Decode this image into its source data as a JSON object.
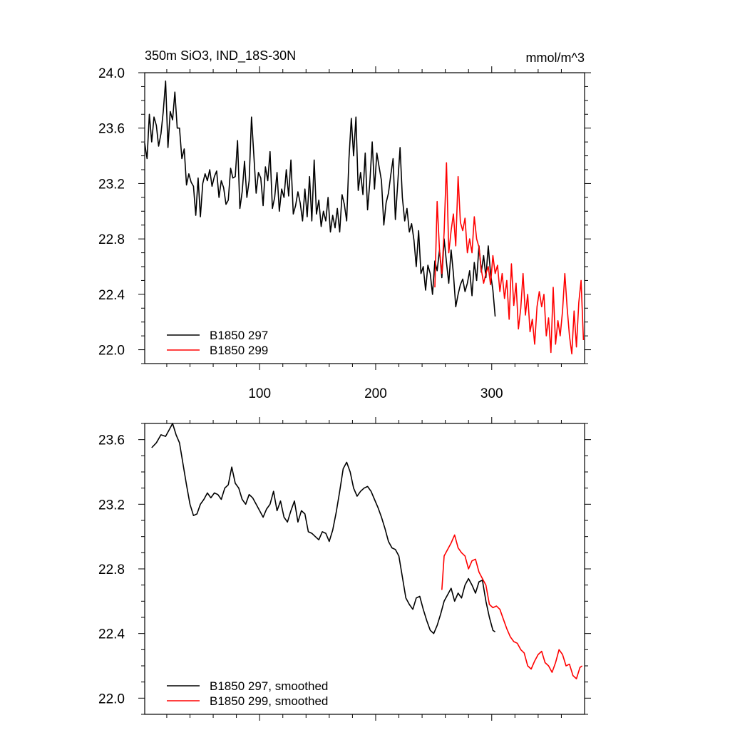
{
  "figure": {
    "title_left": "350m SiO3, IND_18S-30N",
    "title_right": "mmol/m^3"
  },
  "chart_data": [
    {
      "type": "line",
      "title": "350m SiO3, IND_18S-30N",
      "units": "mmol/m^3",
      "xlim": [
        1,
        380
      ],
      "ylim": [
        21.9,
        24.0
      ],
      "x_ticks": [
        100,
        200,
        300
      ],
      "y_ticks": [
        22.0,
        22.4,
        22.8,
        23.2,
        23.6,
        24.0
      ],
      "y_tick_labels": [
        "22.0",
        "22.4",
        "22.8",
        "23.2",
        "23.6",
        "24.0"
      ],
      "legend_position": "bottom-left",
      "series": [
        {
          "name": "B1850 297",
          "color": "#000000",
          "x": [
            1,
            3,
            5,
            7,
            9,
            11,
            13,
            15,
            17,
            19,
            21,
            23,
            25,
            27,
            29,
            31,
            33,
            35,
            37,
            39,
            41,
            43,
            45,
            47,
            49,
            51,
            53,
            55,
            57,
            59,
            61,
            63,
            65,
            67,
            69,
            71,
            73,
            75,
            77,
            79,
            81,
            83,
            85,
            87,
            89,
            91,
            93,
            95,
            97,
            99,
            101,
            103,
            105,
            107,
            109,
            111,
            113,
            115,
            117,
            119,
            121,
            123,
            125,
            127,
            129,
            131,
            133,
            135,
            137,
            139,
            141,
            143,
            145,
            147,
            149,
            151,
            153,
            155,
            157,
            159,
            161,
            163,
            165,
            167,
            169,
            171,
            173,
            175,
            177,
            179,
            181,
            183,
            185,
            187,
            189,
            191,
            193,
            195,
            197,
            199,
            201,
            203,
            205,
            207,
            209,
            211,
            213,
            215,
            217,
            219,
            221,
            223,
            225,
            227,
            229,
            231,
            233,
            235,
            237,
            239,
            241,
            243,
            245,
            247,
            249,
            251,
            253,
            255,
            257,
            259,
            261,
            263,
            265,
            267,
            269,
            271,
            273,
            275,
            277,
            279,
            281,
            283,
            285,
            287,
            289,
            291,
            293,
            295,
            297,
            299,
            301,
            303
          ],
          "y": [
            23.49,
            23.38,
            23.7,
            23.5,
            23.68,
            23.62,
            23.47,
            23.56,
            23.72,
            23.94,
            23.46,
            23.72,
            23.66,
            23.86,
            23.6,
            23.6,
            23.38,
            23.45,
            23.19,
            23.27,
            23.21,
            23.18,
            22.97,
            23.24,
            22.96,
            23.2,
            23.27,
            23.22,
            23.3,
            23.18,
            23.25,
            23.29,
            23.1,
            23.22,
            23.17,
            23.05,
            23.08,
            23.31,
            23.24,
            23.25,
            23.51,
            23.02,
            23.14,
            23.36,
            23.1,
            23.22,
            23.68,
            23.41,
            23.13,
            23.28,
            23.24,
            23.04,
            23.32,
            23.22,
            23.43,
            23.02,
            23.1,
            23.28,
            23.0,
            23.16,
            23.1,
            23.3,
            23.11,
            23.37,
            22.98,
            23.04,
            23.14,
            23.06,
            22.93,
            23.16,
            22.96,
            23.25,
            22.93,
            23.37,
            22.98,
            23.08,
            22.89,
            23.0,
            22.93,
            23.1,
            22.85,
            22.97,
            22.88,
            23.02,
            22.85,
            23.12,
            23.05,
            22.93,
            23.38,
            23.67,
            23.4,
            23.68,
            23.15,
            23.28,
            23.12,
            23.42,
            23.01,
            23.21,
            23.5,
            23.16,
            23.42,
            23.32,
            23.22,
            22.9,
            23.06,
            23.13,
            23.26,
            23.38,
            22.94,
            23.2,
            23.46,
            23.1,
            22.93,
            23.02,
            22.85,
            22.91,
            22.79,
            22.6,
            22.86,
            22.55,
            22.6,
            22.43,
            22.61,
            22.55,
            22.4,
            22.64,
            22.57,
            22.72,
            22.52,
            22.8,
            22.63,
            22.48,
            22.72,
            22.55,
            22.31,
            22.4,
            22.47,
            22.51,
            22.42,
            22.48,
            22.57,
            22.39,
            22.63,
            22.5,
            22.75,
            22.56,
            22.68,
            22.52,
            22.75,
            22.55,
            22.43,
            22.24
          ]
        },
        {
          "name": "B1850 299",
          "color": "#ff0000",
          "x": [
            251,
            253,
            255,
            257,
            259,
            261,
            263,
            265,
            267,
            269,
            271,
            273,
            275,
            277,
            279,
            281,
            283,
            285,
            287,
            289,
            291,
            293,
            295,
            297,
            299,
            301,
            303,
            305,
            307,
            309,
            311,
            313,
            315,
            317,
            319,
            321,
            323,
            325,
            327,
            329,
            331,
            333,
            335,
            337,
            339,
            341,
            343,
            345,
            347,
            349,
            351,
            353,
            355,
            357,
            359,
            361,
            363,
            365,
            367,
            369,
            371,
            373,
            375,
            377,
            379
          ],
          "y": [
            22.45,
            23.07,
            22.72,
            22.55,
            22.85,
            23.35,
            22.7,
            22.86,
            22.98,
            22.75,
            23.25,
            22.92,
            22.86,
            22.95,
            22.7,
            22.8,
            22.7,
            22.96,
            22.8,
            22.74,
            22.58,
            22.48,
            22.55,
            22.6,
            22.47,
            22.68,
            22.55,
            22.61,
            22.42,
            22.55,
            22.37,
            22.5,
            22.22,
            22.62,
            22.32,
            22.48,
            22.15,
            22.3,
            22.55,
            22.25,
            22.4,
            22.13,
            22.22,
            22.04,
            22.31,
            22.42,
            22.31,
            22.4,
            22.1,
            22.23,
            21.98,
            22.45,
            22.04,
            22.21,
            22.1,
            22.28,
            22.55,
            22.3,
            22.1,
            21.97,
            22.28,
            22.02,
            22.34,
            22.5,
            22.07
          ]
        }
      ]
    },
    {
      "type": "line",
      "xlim": [
        1,
        380
      ],
      "ylim": [
        21.9,
        23.7
      ],
      "y_ticks": [
        22.0,
        22.4,
        22.8,
        23.2,
        23.6
      ],
      "y_tick_labels": [
        "22.0",
        "22.4",
        "22.8",
        "23.2",
        "23.6"
      ],
      "legend_position": "bottom-left",
      "series": [
        {
          "name": "B1850 297, smoothed",
          "color": "#000000",
          "x": [
            7,
            11,
            15,
            19,
            22,
            25,
            28,
            31,
            34,
            37,
            40,
            43,
            46,
            49,
            52,
            55,
            58,
            61,
            64,
            67,
            70,
            73,
            76,
            79,
            82,
            85,
            88,
            91,
            94,
            97,
            100,
            103,
            106,
            109,
            112,
            115,
            118,
            121,
            124,
            127,
            130,
            133,
            136,
            139,
            142,
            145,
            148,
            151,
            154,
            157,
            160,
            163,
            166,
            169,
            172,
            175,
            178,
            181,
            184,
            187,
            190,
            193,
            196,
            199,
            202,
            205,
            208,
            211,
            214,
            217,
            220,
            223,
            226,
            229,
            232,
            235,
            238,
            241,
            244,
            247,
            250,
            253,
            256,
            259,
            262,
            265,
            268,
            271,
            274,
            277,
            280,
            283,
            286,
            289,
            292,
            295,
            298,
            301,
            303
          ],
          "y": [
            23.55,
            23.58,
            23.63,
            23.62,
            23.66,
            23.7,
            23.63,
            23.58,
            23.45,
            23.32,
            23.2,
            23.13,
            23.14,
            23.2,
            23.23,
            23.27,
            23.24,
            23.27,
            23.26,
            23.23,
            23.3,
            23.32,
            23.43,
            23.33,
            23.3,
            23.23,
            23.2,
            23.26,
            23.24,
            23.2,
            23.16,
            23.12,
            23.17,
            23.2,
            23.28,
            23.16,
            23.22,
            23.12,
            23.09,
            23.16,
            23.22,
            23.09,
            23.16,
            23.14,
            23.03,
            23.02,
            23.0,
            22.98,
            23.03,
            23.02,
            22.97,
            23.04,
            23.15,
            23.28,
            23.42,
            23.46,
            23.4,
            23.3,
            23.25,
            23.28,
            23.3,
            23.31,
            23.28,
            23.23,
            23.18,
            23.12,
            23.05,
            22.97,
            22.93,
            22.92,
            22.88,
            22.75,
            22.62,
            22.58,
            22.55,
            22.62,
            22.63,
            22.55,
            22.48,
            22.42,
            22.4,
            22.45,
            22.52,
            22.6,
            22.64,
            22.68,
            22.6,
            22.65,
            22.62,
            22.7,
            22.74,
            22.7,
            22.65,
            22.72,
            22.73,
            22.6,
            22.5,
            22.42,
            22.41
          ]
        },
        {
          "name": "B1850 299, smoothed",
          "color": "#ff0000",
          "x": [
            257,
            259,
            262,
            265,
            268,
            271,
            274,
            277,
            280,
            283,
            286,
            289,
            292,
            295,
            298,
            301,
            304,
            307,
            310,
            313,
            316,
            319,
            322,
            325,
            328,
            331,
            334,
            337,
            340,
            343,
            346,
            349,
            352,
            355,
            358,
            361,
            364,
            367,
            370,
            373,
            376,
            378
          ],
          "y": [
            22.67,
            22.88,
            22.92,
            22.96,
            23.01,
            22.93,
            22.9,
            22.88,
            22.8,
            22.85,
            22.86,
            22.78,
            22.74,
            22.7,
            22.58,
            22.56,
            22.57,
            22.55,
            22.49,
            22.43,
            22.38,
            22.35,
            22.34,
            22.3,
            22.28,
            22.2,
            22.18,
            22.23,
            22.27,
            22.29,
            22.22,
            22.2,
            22.16,
            22.22,
            22.3,
            22.27,
            22.2,
            22.21,
            22.14,
            22.12,
            22.19,
            22.2
          ]
        }
      ]
    }
  ]
}
